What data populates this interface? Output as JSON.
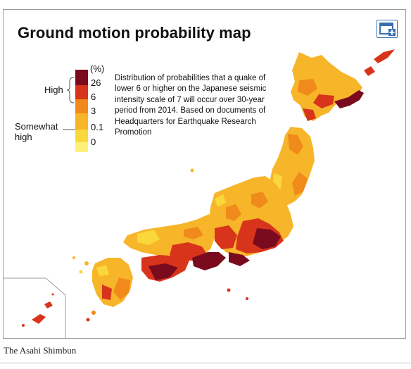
{
  "map": {
    "title": "Ground motion probability map",
    "legend": {
      "unit": "(%)",
      "ticks": [
        "26",
        "6",
        "3",
        "0.1",
        "0"
      ],
      "level_high": "High",
      "level_somewhat_high": "Somewhat high",
      "colors": [
        "#7a0b1e",
        "#d8341c",
        "#f08a1a",
        "#f7b52a",
        "#fad73a",
        "#fdf07a"
      ]
    },
    "description": "Distribution of probabilities that a quake of lower 6 or higher on the Japanese seismic intensity scale of 7 will occur over 30-year period from 2014. Based on documents of Headquarters for Earthquake Research Promotion",
    "expand_icon": "expand-image-icon"
  },
  "caption": "The Asahi Shimbun"
}
